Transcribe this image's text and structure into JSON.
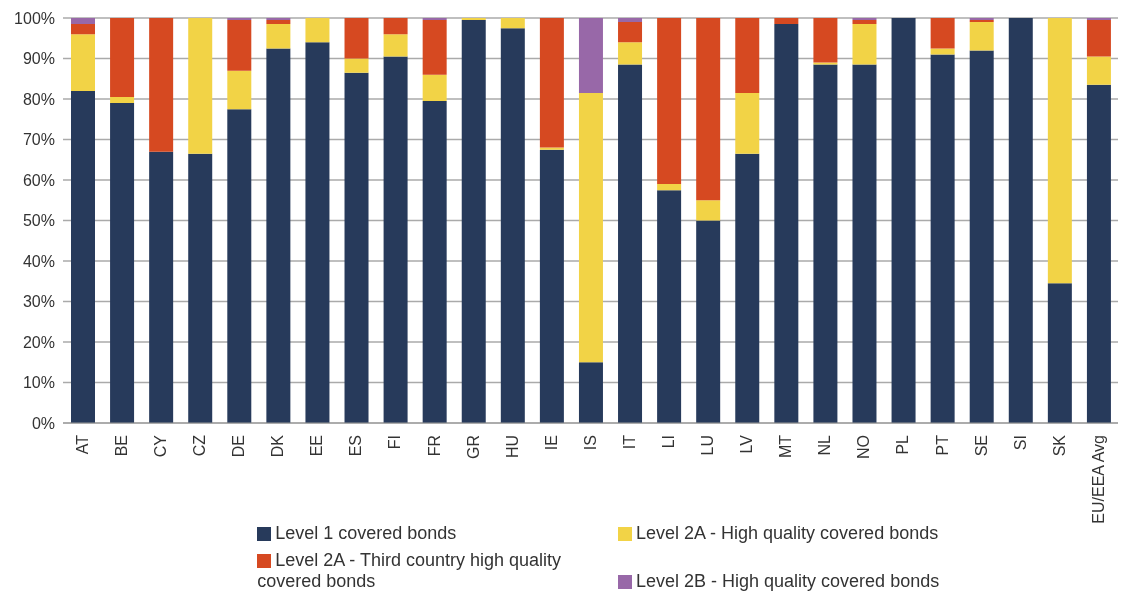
{
  "chart_data": {
    "type": "bar",
    "stacked": true,
    "categories": [
      "AT",
      "BE",
      "CY",
      "CZ",
      "DE",
      "DK",
      "EE",
      "ES",
      "FI",
      "FR",
      "GR",
      "HU",
      "IE",
      "IS",
      "IT",
      "LI",
      "LU",
      "LV",
      "MT",
      "NL",
      "NO",
      "PL",
      "PT",
      "SE",
      "SI",
      "SK",
      "EU/EEA Avg"
    ],
    "series": [
      {
        "name": "Level 1 covered bonds",
        "color": "#273a5b",
        "values": [
          82,
          79,
          67,
          66.5,
          77.5,
          92.5,
          94,
          86.5,
          90.5,
          79.5,
          99.5,
          97.5,
          67.5,
          15,
          88.5,
          57.5,
          50,
          66.5,
          98.5,
          88.5,
          88.5,
          100,
          91,
          92,
          100,
          34.5,
          83.5
        ]
      },
      {
        "name": "Level 2A - High quality covered bonds",
        "color": "#f2d346",
        "values": [
          14,
          1.5,
          0,
          33.5,
          9.5,
          6,
          6,
          3.5,
          5.5,
          6.5,
          0.5,
          2.5,
          0.5,
          66.5,
          5.5,
          1.5,
          5,
          15,
          0,
          0.5,
          10,
          0,
          1.5,
          7,
          0,
          65.5,
          7
        ]
      },
      {
        "name": "Level 2A - Third country high quality covered bonds",
        "color": "#d64921",
        "values": [
          2.5,
          19.5,
          33,
          0,
          12.5,
          1,
          0,
          10,
          4,
          13.5,
          0,
          0,
          32,
          0,
          5,
          41,
          45,
          18.5,
          1.5,
          11,
          1,
          0,
          7.5,
          0.5,
          0,
          0,
          9
        ]
      },
      {
        "name": "Level 2B - High quality covered bonds",
        "color": "#9868a8",
        "values": [
          1.5,
          0,
          0,
          0,
          0.5,
          0.5,
          0,
          0,
          0,
          0.5,
          0,
          0,
          0,
          18.5,
          1,
          0,
          0,
          0,
          0,
          0,
          0.5,
          0,
          0,
          0.5,
          0,
          0,
          0.5
        ]
      }
    ],
    "ylim": [
      0,
      100
    ],
    "yticks": [
      {
        "value": 0,
        "label": "0%"
      },
      {
        "value": 10,
        "label": "10%"
      },
      {
        "value": 20,
        "label": "20%"
      },
      {
        "value": 30,
        "label": "30%"
      },
      {
        "value": 40,
        "label": "40%"
      },
      {
        "value": 50,
        "label": "50%"
      },
      {
        "value": 60,
        "label": "60%"
      },
      {
        "value": 70,
        "label": "70%"
      },
      {
        "value": 80,
        "label": "80%"
      },
      {
        "value": 90,
        "label": "90%"
      },
      {
        "value": 100,
        "label": "100%"
      }
    ],
    "grid": "y",
    "legend": "bottom"
  }
}
